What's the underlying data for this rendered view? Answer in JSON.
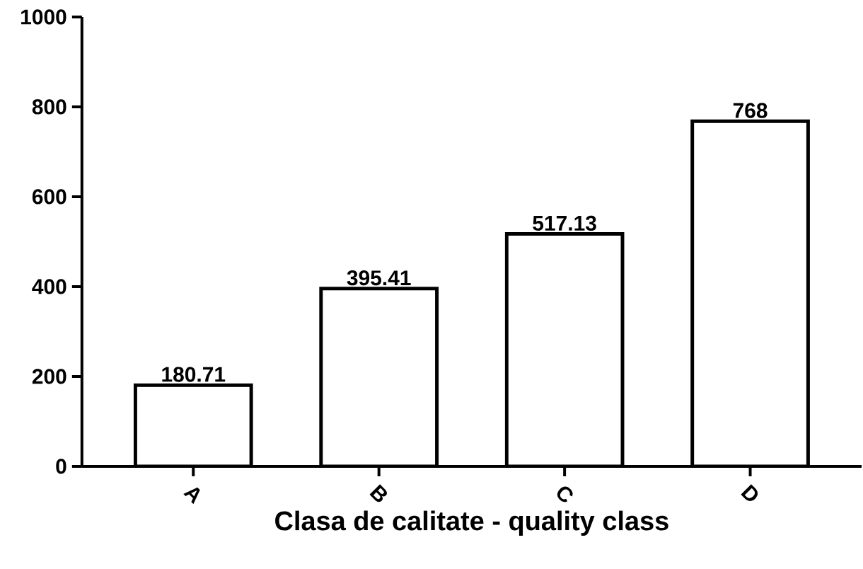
{
  "chart_data": {
    "type": "bar",
    "xlabel": "Clasa de calitate - quality class",
    "categories": [
      "A",
      "B",
      "C",
      "D"
    ],
    "values": [
      180.71,
      395.41,
      517.13,
      768
    ],
    "colors": [
      "#000000",
      "#000000",
      "#000000",
      "#000000"
    ],
    "ylim": [
      0,
      1000
    ],
    "yticks": [
      0,
      200,
      400,
      600,
      800,
      1000
    ],
    "data_labels": true
  }
}
